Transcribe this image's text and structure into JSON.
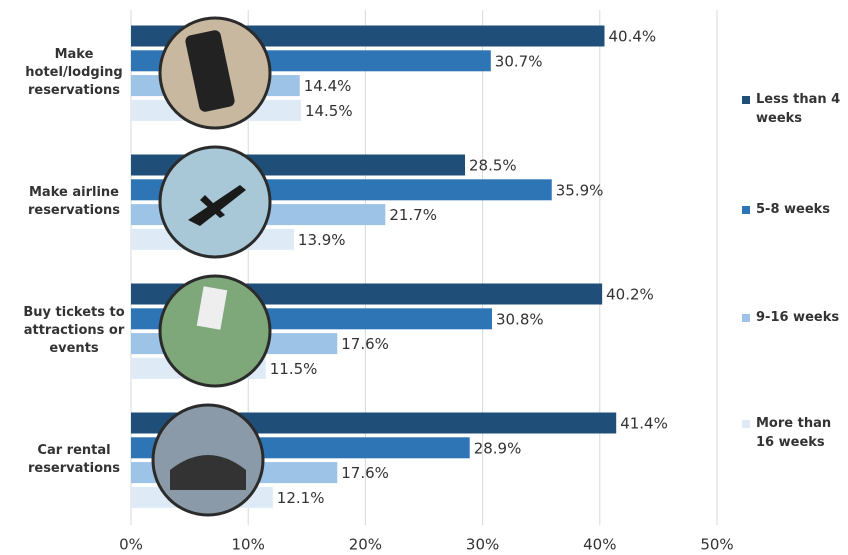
{
  "chart_data": {
    "type": "hbar-grouped",
    "categories": [
      "Make hotel/lodging reservations",
      "Make airline reservations",
      "Buy tickets to attractions or events",
      "Car rental reservations"
    ],
    "series": [
      {
        "name": "Less than 4 weeks",
        "color": "#1f4e79",
        "values": [
          40.4,
          28.5,
          40.2,
          41.4
        ],
        "value_labels": [
          "40.4%",
          "28.5%",
          "40.2%",
          "41.4%"
        ]
      },
      {
        "name": "5-8 weeks",
        "color": "#2e75b6",
        "values": [
          30.7,
          35.9,
          30.8,
          28.9
        ],
        "value_labels": [
          "30.7%",
          "35.9%",
          "30.8%",
          "28.9%"
        ]
      },
      {
        "name": "9-16 weeks",
        "color": "#9dc3e6",
        "values": [
          14.4,
          21.7,
          17.6,
          17.6
        ],
        "value_labels": [
          "14.4%",
          "21.7%",
          "17.6%",
          "17.6%"
        ]
      },
      {
        "name": "More than 16 weeks",
        "color": "#deebf7",
        "values": [
          14.5,
          13.9,
          11.5,
          12.1
        ],
        "value_labels": [
          "14.5%",
          "13.9%",
          "11.5%",
          "12.1%"
        ]
      }
    ],
    "xlim": [
      0,
      50
    ],
    "xticks": [
      {
        "value": 0,
        "label": "0%"
      },
      {
        "value": 10,
        "label": "10%"
      },
      {
        "value": 20,
        "label": "20%"
      },
      {
        "value": 30,
        "label": "30%"
      },
      {
        "value": 40,
        "label": "40%"
      },
      {
        "value": 50,
        "label": "50%"
      }
    ],
    "grid": true,
    "legend": "right"
  }
}
